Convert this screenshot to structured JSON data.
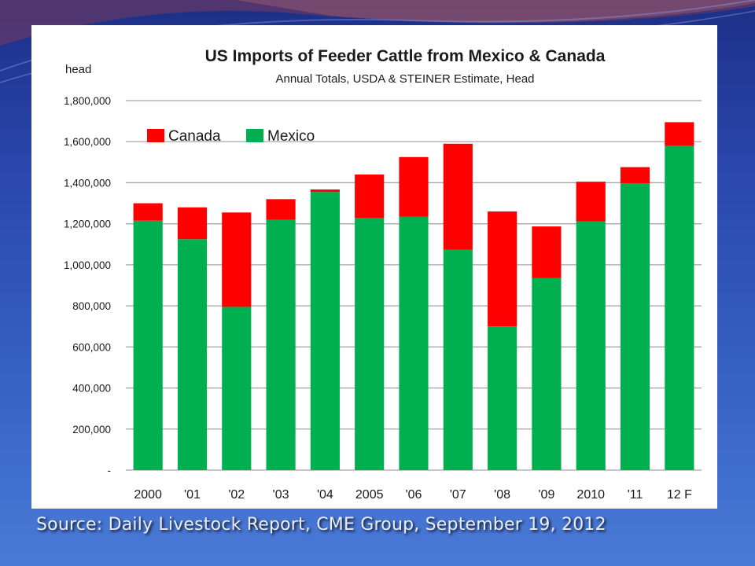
{
  "source_note": "Source: Daily Livestock Report, CME Group, September 19, 2012",
  "colors": {
    "canada": "#fe0000",
    "mexico": "#00b050",
    "grid": "#a6a6a6",
    "text": "#1a1a1a"
  },
  "chart_data": {
    "type": "bar",
    "stacked": true,
    "title": "US Imports of Feeder Cattle from Mexico & Canada",
    "subtitle": "Annual Totals, USDA & STEINER Estimate, Head",
    "ylabel": "head",
    "xlabel": "",
    "ylim": [
      0,
      1800000
    ],
    "yticks": [
      0,
      200000,
      400000,
      600000,
      800000,
      1000000,
      1200000,
      1400000,
      1600000,
      1800000
    ],
    "ytick_labels": [
      "-",
      "200,000",
      "400,000",
      "600,000",
      "800,000",
      "1,000,000",
      "1,200,000",
      "1,400,000",
      "1,600,000",
      "1,800,000"
    ],
    "categories": [
      "2000",
      "'01",
      "'02",
      "'03",
      "'04",
      "2005",
      "'06",
      "'07",
      "'08",
      "'09",
      "2010",
      "'11",
      "12 F"
    ],
    "series": [
      {
        "name": "Mexico",
        "color": "#00b050",
        "values": [
          1215000,
          1125000,
          795000,
          1220000,
          1355000,
          1228000,
          1235000,
          1073000,
          700000,
          935000,
          1212000,
          1398000,
          1580000
        ]
      },
      {
        "name": "Canada",
        "color": "#fe0000",
        "values": [
          85000,
          155000,
          460000,
          100000,
          12000,
          212000,
          290000,
          517000,
          560000,
          252000,
          193000,
          78000,
          115000
        ]
      }
    ],
    "legend": {
      "position": "top-left",
      "order": [
        "Canada",
        "Mexico"
      ]
    },
    "grid": true
  }
}
